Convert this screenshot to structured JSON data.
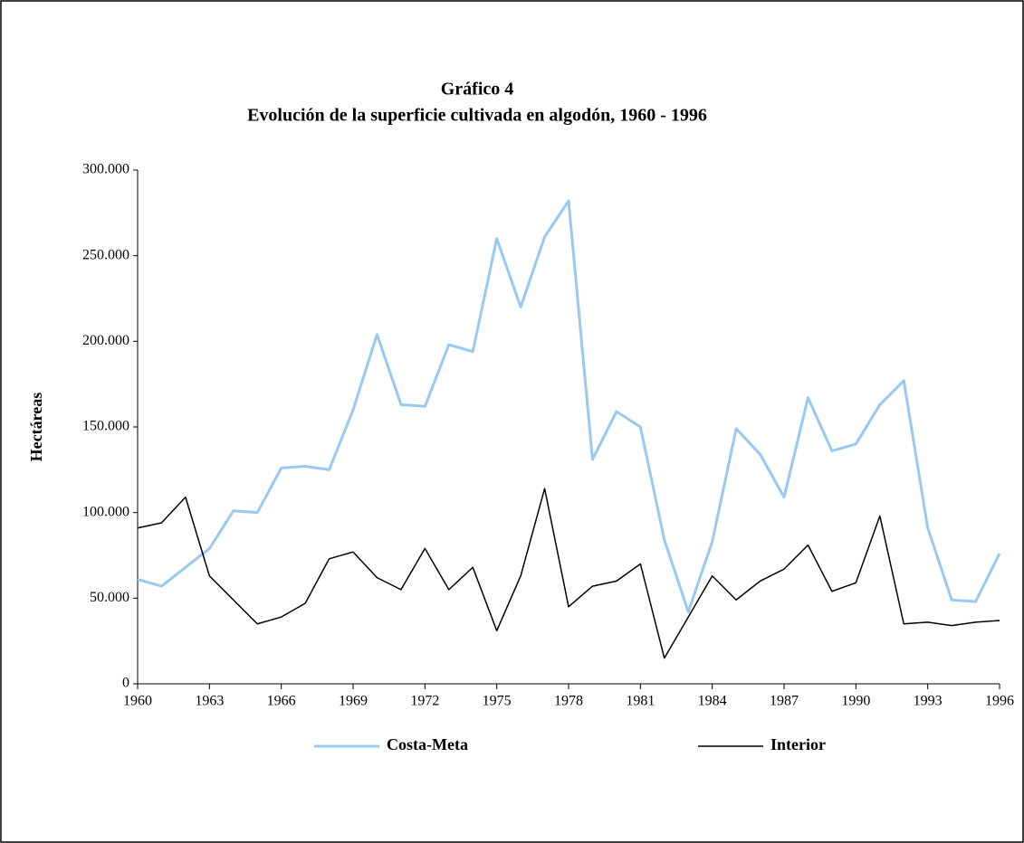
{
  "chart_data": {
    "type": "line",
    "title": "Gráfico 4",
    "subtitle": "Evolución de la superficie cultivada en algodón, 1960 - 1996",
    "y_label": "Hectáreas",
    "x": [
      1960,
      1961,
      1962,
      1963,
      1964,
      1965,
      1966,
      1967,
      1968,
      1969,
      1970,
      1971,
      1972,
      1973,
      1974,
      1975,
      1976,
      1977,
      1978,
      1979,
      1980,
      1981,
      1982,
      1983,
      1984,
      1985,
      1986,
      1987,
      1988,
      1989,
      1990,
      1991,
      1992,
      1993,
      1994,
      1995,
      1996
    ],
    "series": [
      {
        "name": "Costa-Meta",
        "color": "#99c8f0",
        "values": [
          61000,
          57000,
          68000,
          79000,
          101000,
          100000,
          126000,
          127000,
          125000,
          160000,
          204000,
          163000,
          162000,
          198000,
          194000,
          260000,
          220000,
          261000,
          282000,
          131000,
          159000,
          150000,
          84000,
          42000,
          83000,
          149000,
          134000,
          109000,
          167000,
          136000,
          140000,
          163000,
          177000,
          91000,
          49000,
          48000,
          76000
        ]
      },
      {
        "name": "Interior",
        "color": "#000000",
        "values": [
          91000,
          94000,
          109000,
          63000,
          49000,
          35000,
          39000,
          47000,
          73000,
          77000,
          62000,
          55000,
          79000,
          55000,
          68000,
          31000,
          63000,
          114000,
          45000,
          57000,
          60000,
          70000,
          15000,
          39000,
          63000,
          49000,
          60000,
          67000,
          81000,
          54000,
          59000,
          98000,
          35000,
          36000,
          34000,
          36000,
          37000
        ]
      }
    ],
    "xlim": [
      1960,
      1996
    ],
    "xticks": [
      1960,
      1963,
      1966,
      1969,
      1972,
      1975,
      1978,
      1981,
      1984,
      1987,
      1990,
      1993,
      1996
    ],
    "ylim": [
      0,
      300000
    ],
    "yticks": [
      0,
      {
        "value": 50000,
        "label": "50.000"
      },
      {
        "value": 100000,
        "label": "100.000"
      },
      {
        "value": 150000,
        "label": "150.000"
      },
      {
        "value": 200000,
        "label": "200.000"
      },
      {
        "value": 250000,
        "label": "250.000"
      },
      {
        "value": 300000,
        "label": "300.000"
      }
    ],
    "legend": "bottom"
  }
}
